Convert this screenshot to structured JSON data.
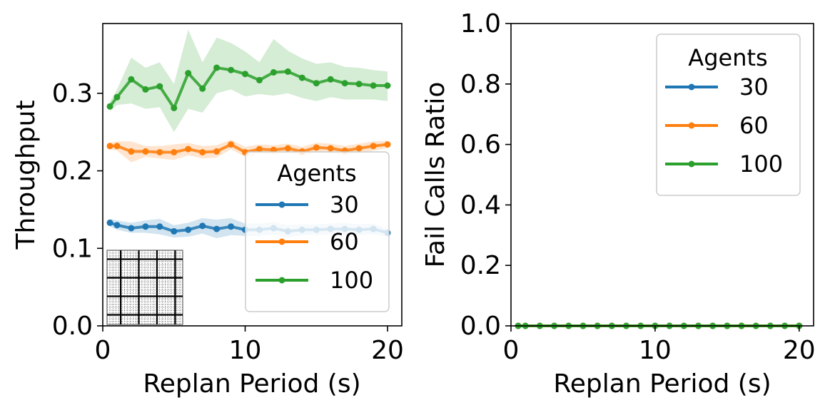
{
  "chart_data": [
    {
      "type": "line",
      "xlabel": "Replan Period (s)",
      "ylabel": "Throughput",
      "xlim": [
        0,
        21
      ],
      "ylim": [
        0,
        0.39
      ],
      "xticks": [
        0,
        10,
        20
      ],
      "xtick_labels": [
        "0",
        "10",
        "20"
      ],
      "yticks": [
        0.0,
        0.1,
        0.2,
        0.3
      ],
      "ytick_labels": [
        "0.0",
        "0.1",
        "0.2",
        "0.3"
      ],
      "legend": {
        "title": "Agents",
        "location": "lower-right"
      },
      "inset": "grid-map",
      "x": [
        0.5,
        1,
        2,
        3,
        4,
        5,
        6,
        7,
        8,
        9,
        10,
        11,
        12,
        13,
        14,
        15,
        16,
        17,
        18,
        19,
        20
      ],
      "series": [
        {
          "name": "30",
          "color": "#1f77b4",
          "values": [
            0.133,
            0.13,
            0.126,
            0.128,
            0.128,
            0.122,
            0.124,
            0.129,
            0.125,
            0.128,
            0.124,
            0.124,
            0.126,
            0.122,
            0.124,
            0.124,
            0.125,
            0.125,
            0.124,
            0.125,
            0.12
          ],
          "band_lower": [
            0.128,
            0.124,
            0.12,
            0.12,
            0.118,
            0.114,
            0.115,
            0.119,
            0.113,
            0.117,
            0.116,
            0.116,
            0.118,
            0.114,
            0.117,
            0.117,
            0.118,
            0.117,
            0.117,
            0.118,
            0.115
          ],
          "band_upper": [
            0.138,
            0.136,
            0.133,
            0.136,
            0.138,
            0.13,
            0.133,
            0.139,
            0.137,
            0.139,
            0.132,
            0.132,
            0.134,
            0.13,
            0.131,
            0.131,
            0.132,
            0.133,
            0.131,
            0.132,
            0.125
          ]
        },
        {
          "name": "60",
          "color": "#ff7f0e",
          "values": [
            0.232,
            0.232,
            0.225,
            0.225,
            0.224,
            0.224,
            0.228,
            0.224,
            0.225,
            0.234,
            0.224,
            0.228,
            0.227,
            0.229,
            0.225,
            0.23,
            0.229,
            0.226,
            0.229,
            0.232,
            0.234
          ],
          "band_lower": [
            0.228,
            0.226,
            0.211,
            0.218,
            0.216,
            0.214,
            0.22,
            0.216,
            0.217,
            0.228,
            0.218,
            0.222,
            0.221,
            0.223,
            0.219,
            0.224,
            0.223,
            0.22,
            0.223,
            0.226,
            0.229
          ],
          "band_upper": [
            0.236,
            0.238,
            0.238,
            0.232,
            0.232,
            0.234,
            0.236,
            0.232,
            0.233,
            0.24,
            0.231,
            0.234,
            0.233,
            0.235,
            0.231,
            0.236,
            0.235,
            0.232,
            0.235,
            0.238,
            0.239
          ]
        },
        {
          "name": "100",
          "color": "#2ca02c",
          "values": [
            0.283,
            0.295,
            0.318,
            0.305,
            0.309,
            0.281,
            0.326,
            0.306,
            0.333,
            0.33,
            0.325,
            0.317,
            0.327,
            0.328,
            0.32,
            0.313,
            0.318,
            0.313,
            0.312,
            0.31,
            0.31
          ],
          "band_lower": [
            0.277,
            0.285,
            0.287,
            0.28,
            0.282,
            0.25,
            0.28,
            0.275,
            0.3,
            0.305,
            0.296,
            0.299,
            0.297,
            0.3,
            0.294,
            0.29,
            0.295,
            0.292,
            0.292,
            0.292,
            0.29
          ],
          "band_upper": [
            0.289,
            0.305,
            0.346,
            0.333,
            0.34,
            0.312,
            0.382,
            0.34,
            0.372,
            0.365,
            0.354,
            0.34,
            0.37,
            0.355,
            0.345,
            0.338,
            0.34,
            0.334,
            0.333,
            0.33,
            0.328
          ]
        }
      ]
    },
    {
      "type": "line",
      "xlabel": "Replan Period (s)",
      "ylabel": "Fail Calls Ratio",
      "xlim": [
        0,
        21
      ],
      "ylim": [
        0,
        1.0
      ],
      "xticks": [
        0,
        10,
        20
      ],
      "xtick_labels": [
        "0",
        "10",
        "20"
      ],
      "yticks": [
        0.0,
        0.2,
        0.4,
        0.6,
        0.8,
        1.0
      ],
      "ytick_labels": [
        "0.0",
        "0.2",
        "0.4",
        "0.6",
        "0.8",
        "1.0"
      ],
      "legend": {
        "title": "Agents",
        "location": "upper-right"
      },
      "x": [
        0.5,
        1,
        2,
        3,
        4,
        5,
        6,
        7,
        8,
        9,
        10,
        11,
        12,
        13,
        14,
        15,
        16,
        17,
        18,
        19,
        20
      ],
      "series": [
        {
          "name": "30",
          "color": "#1f77b4",
          "values": [
            0,
            0,
            0,
            0,
            0,
            0,
            0,
            0,
            0,
            0,
            0,
            0,
            0,
            0,
            0,
            0,
            0,
            0,
            0,
            0,
            0
          ]
        },
        {
          "name": "60",
          "color": "#ff7f0e",
          "values": [
            0,
            0,
            0,
            0,
            0,
            0,
            0,
            0,
            0,
            0,
            0,
            0,
            0,
            0,
            0,
            0,
            0,
            0,
            0,
            0,
            0
          ]
        },
        {
          "name": "100",
          "color": "#2ca02c",
          "values": [
            0,
            0,
            0,
            0,
            0,
            0,
            0,
            0,
            0,
            0,
            0,
            0,
            0,
            0,
            0,
            0,
            0,
            0,
            0,
            0,
            0
          ]
        }
      ]
    }
  ]
}
